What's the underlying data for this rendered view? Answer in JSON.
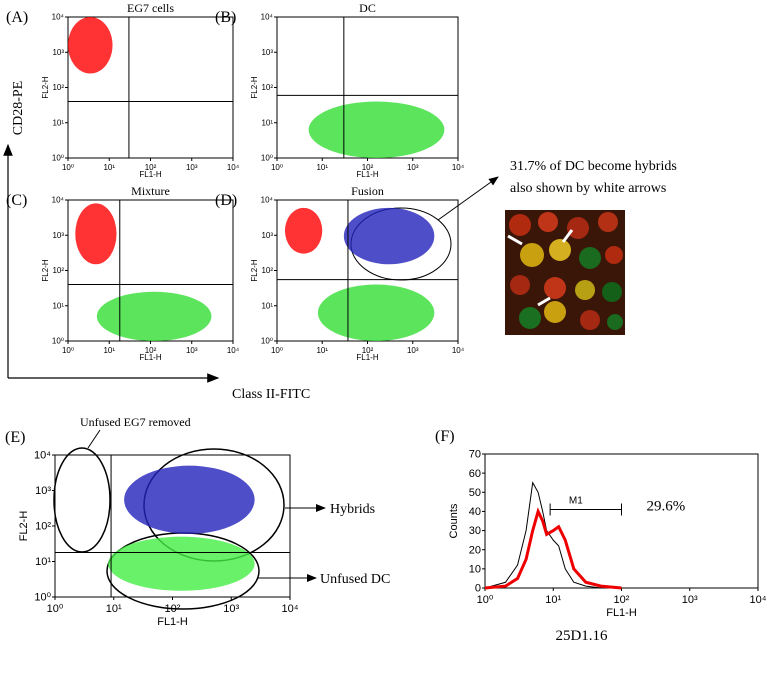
{
  "chart_data": [
    {
      "type": "scatter",
      "panel": "(A)",
      "title": "EG7 cells",
      "xlabel": "FL1-H",
      "ylabel": "FL2-H",
      "log_scale": true,
      "xlim": [
        1,
        10000
      ],
      "ylim": [
        1,
        10000
      ],
      "xticks": [
        {
          "value": 1,
          "label": "10⁰"
        },
        {
          "value": 10,
          "label": "10¹"
        },
        {
          "value": 100,
          "label": "10²"
        },
        {
          "value": 1000,
          "label": "10³"
        },
        {
          "value": 10000,
          "label": "10⁴"
        }
      ],
      "yticks": [
        {
          "value": 1,
          "label": "10⁰"
        },
        {
          "value": 10,
          "label": "10¹"
        },
        {
          "value": 100,
          "label": "10²"
        },
        {
          "value": 1000,
          "label": "10³"
        },
        {
          "value": 10000,
          "label": "10⁴"
        }
      ],
      "quadrant": {
        "x": 30,
        "y": 40
      },
      "populations": [
        {
          "color": "#ff0000",
          "x": [
            1,
            12
          ],
          "y": [
            250,
            10000
          ]
        }
      ]
    },
    {
      "type": "scatter",
      "panel": "(B)",
      "title": "DC",
      "xlabel": "FL1-H",
      "ylabel": "FL2-H",
      "log_scale": true,
      "xlim": [
        1,
        10000
      ],
      "ylim": [
        1,
        10000
      ],
      "xticks": [
        {
          "value": 1,
          "label": "10⁰"
        },
        {
          "value": 10,
          "label": "10¹"
        },
        {
          "value": 100,
          "label": "10²"
        },
        {
          "value": 1000,
          "label": "10³"
        },
        {
          "value": 10000,
          "label": "10⁴"
        }
      ],
      "yticks": [
        {
          "value": 1,
          "label": "10⁰"
        },
        {
          "value": 10,
          "label": "10¹"
        },
        {
          "value": 100,
          "label": "10²"
        },
        {
          "value": 1000,
          "label": "10³"
        },
        {
          "value": 10000,
          "label": "10⁴"
        }
      ],
      "quadrant": {
        "x": 30,
        "y": 60
      },
      "populations": [
        {
          "color": "#33dd33",
          "x": [
            5,
            5000
          ],
          "y": [
            1,
            40
          ]
        }
      ]
    },
    {
      "type": "scatter",
      "panel": "(C)",
      "title": "Mixture",
      "xlabel": "FL1-H",
      "ylabel": "FL2-H",
      "log_scale": true,
      "xlim": [
        1,
        10000
      ],
      "ylim": [
        1,
        10000
      ],
      "xticks": [
        {
          "value": 1,
          "label": "10⁰"
        },
        {
          "value": 10,
          "label": "10¹"
        },
        {
          "value": 100,
          "label": "10²"
        },
        {
          "value": 1000,
          "label": "10³"
        },
        {
          "value": 10000,
          "label": "10⁴"
        }
      ],
      "yticks": [
        {
          "value": 1,
          "label": "10⁰"
        },
        {
          "value": 10,
          "label": "10¹"
        },
        {
          "value": 100,
          "label": "10²"
        },
        {
          "value": 1000,
          "label": "10³"
        },
        {
          "value": 10000,
          "label": "10⁴"
        }
      ],
      "quadrant": {
        "x": 18,
        "y": 40
      },
      "populations": [
        {
          "color": "#ff0000",
          "x": [
            1.5,
            15
          ],
          "y": [
            150,
            8000
          ]
        },
        {
          "color": "#33dd33",
          "x": [
            5,
            3000
          ],
          "y": [
            1,
            25
          ]
        }
      ]
    },
    {
      "type": "scatter",
      "panel": "(D)",
      "title": "Fusion",
      "xlabel": "FL1-H",
      "ylabel": "FL2-H",
      "log_scale": true,
      "xlim": [
        1,
        10000
      ],
      "ylim": [
        1,
        10000
      ],
      "xticks": [
        {
          "value": 1,
          "label": "10⁰"
        },
        {
          "value": 10,
          "label": "10¹"
        },
        {
          "value": 100,
          "label": "10²"
        },
        {
          "value": 1000,
          "label": "10³"
        },
        {
          "value": 10000,
          "label": "10⁴"
        }
      ],
      "yticks": [
        {
          "value": 1,
          "label": "10⁰"
        },
        {
          "value": 10,
          "label": "10¹"
        },
        {
          "value": 100,
          "label": "10²"
        },
        {
          "value": 1000,
          "label": "10³"
        },
        {
          "value": 10000,
          "label": "10⁴"
        }
      ],
      "quadrant": {
        "x": 37,
        "y": 55
      },
      "populations": [
        {
          "color": "#ff0000",
          "x": [
            1.5,
            10
          ],
          "y": [
            300,
            6000
          ]
        },
        {
          "color": "#2222bb",
          "x": [
            30,
            3000
          ],
          "y": [
            150,
            6000
          ]
        },
        {
          "color": "#33dd33",
          "x": [
            8,
            3000
          ],
          "y": [
            1,
            40
          ]
        }
      ]
    },
    {
      "type": "scatter",
      "panel": "(E)",
      "xlabel": "FL1-H",
      "ylabel": "FL2-H",
      "log_scale": true,
      "xlim": [
        1,
        10000
      ],
      "ylim": [
        1,
        10000
      ],
      "xticks": [
        {
          "value": 1,
          "label": "10⁰"
        },
        {
          "value": 10,
          "label": "10¹"
        },
        {
          "value": 100,
          "label": "10²"
        },
        {
          "value": 1000,
          "label": "10³"
        },
        {
          "value": 10000,
          "label": "10⁴"
        }
      ],
      "yticks": [
        {
          "value": 1,
          "label": "10⁰"
        },
        {
          "value": 10,
          "label": "10¹"
        },
        {
          "value": 100,
          "label": "10²"
        },
        {
          "value": 1000,
          "label": "10³"
        },
        {
          "value": 10000,
          "label": "10⁴"
        }
      ],
      "quadrant": {
        "x": 9,
        "y": 18
      },
      "populations": [
        {
          "color": "#2222bb",
          "x": [
            15,
            2500
          ],
          "y": [
            60,
            5000
          ]
        },
        {
          "color": "#44ee44",
          "x": [
            8,
            2500
          ],
          "y": [
            1.5,
            50
          ]
        }
      ]
    },
    {
      "type": "line",
      "panel": "(F)",
      "caption": "25D1.16",
      "xlabel": "FL1-H",
      "ylabel": "Counts",
      "log_scale": true,
      "xlim": [
        1,
        10000
      ],
      "ylim": [
        0,
        70
      ],
      "xticks": [
        {
          "value": 1,
          "label": "10⁰"
        },
        {
          "value": 10,
          "label": "10¹"
        },
        {
          "value": 100,
          "label": "10²"
        },
        {
          "value": 1000,
          "label": "10³"
        },
        {
          "value": 10000,
          "label": "10⁴"
        }
      ],
      "yticks": [
        0,
        10,
        20,
        30,
        40,
        50,
        60,
        70
      ],
      "series": [
        {
          "color": "#000000",
          "x": [
            1,
            2,
            3,
            4,
            5,
            6,
            7,
            8,
            10,
            12,
            15,
            20,
            30,
            50,
            100
          ],
          "values": [
            0,
            3,
            12,
            30,
            55,
            50,
            40,
            30,
            25,
            22,
            10,
            3,
            1,
            0,
            0
          ]
        },
        {
          "color": "#ee0000",
          "x": [
            1,
            2,
            3,
            4,
            5,
            6,
            7,
            8,
            10,
            12,
            15,
            20,
            30,
            50,
            100
          ],
          "values": [
            0,
            1,
            5,
            15,
            30,
            40,
            35,
            28,
            30,
            32,
            25,
            10,
            3,
            1,
            0
          ]
        }
      ],
      "marker": {
        "label": "M1",
        "x": [
          9,
          100
        ],
        "y": 41,
        "percent_label": "29.6%"
      }
    }
  ],
  "figure": {
    "y_axis_label": "CD28-PE",
    "x_axis_label": "Class II-FITC",
    "note_line1": "31.7% of DC become hybrids",
    "note_line2": "also shown by white arrows",
    "unfused_eg7": "Unfused EG7 removed",
    "hybrids": "Hybrids",
    "unfused_dc": "Unfused DC"
  }
}
